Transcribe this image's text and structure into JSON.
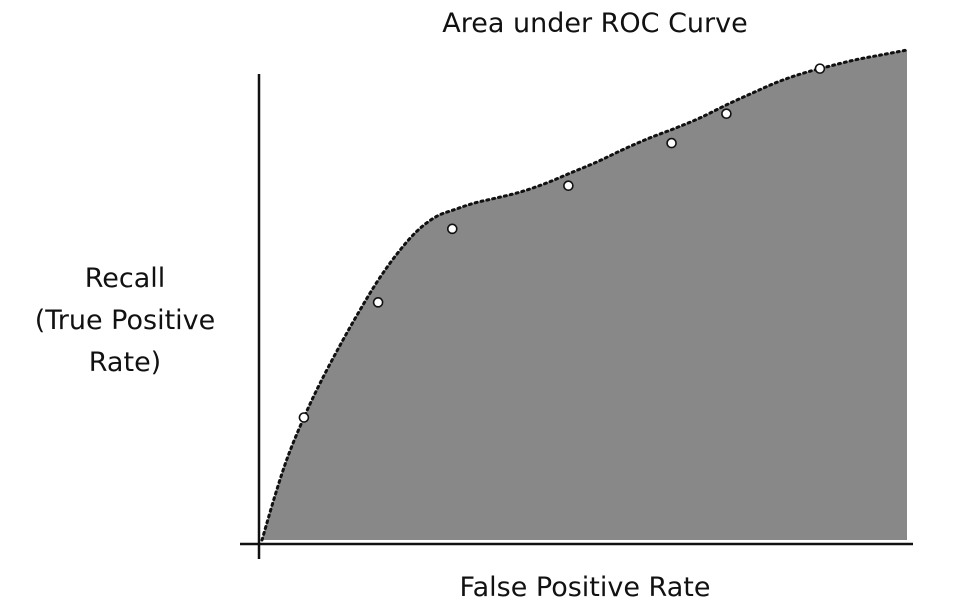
{
  "chart_data": {
    "type": "area",
    "title": "Area under ROC Curve",
    "xlabel": "False Positive Rate",
    "ylabel_lines": [
      "Recall",
      "(True Positive",
      "Rate)"
    ],
    "xlim": [
      0,
      1
    ],
    "ylim": [
      0,
      1
    ],
    "grid": false,
    "legend": "none",
    "curve": {
      "x": [
        0.0,
        0.02,
        0.04,
        0.065,
        0.09,
        0.12,
        0.15,
        0.18,
        0.21,
        0.24,
        0.27,
        0.3,
        0.33,
        0.36,
        0.4,
        0.44,
        0.48,
        0.52,
        0.56,
        0.6,
        0.64,
        0.68,
        0.72,
        0.76,
        0.8,
        0.84,
        0.88,
        0.92,
        0.96,
        1.0
      ],
      "y": [
        0.0,
        0.09,
        0.17,
        0.25,
        0.32,
        0.395,
        0.465,
        0.53,
        0.585,
        0.63,
        0.66,
        0.675,
        0.688,
        0.697,
        0.71,
        0.728,
        0.75,
        0.772,
        0.797,
        0.82,
        0.84,
        0.862,
        0.888,
        0.912,
        0.935,
        0.953,
        0.967,
        0.98,
        0.99,
        1.0
      ]
    },
    "points": {
      "x": [
        0.065,
        0.18,
        0.295,
        0.475,
        0.635,
        0.72,
        0.865
      ],
      "y": [
        0.25,
        0.485,
        0.635,
        0.723,
        0.81,
        0.87,
        0.962
      ]
    },
    "colors": {
      "fill": "#888888",
      "curve": "#111111",
      "marker_fill": "#ffffff",
      "marker_stroke": "#111111",
      "axis": "#111111"
    }
  }
}
